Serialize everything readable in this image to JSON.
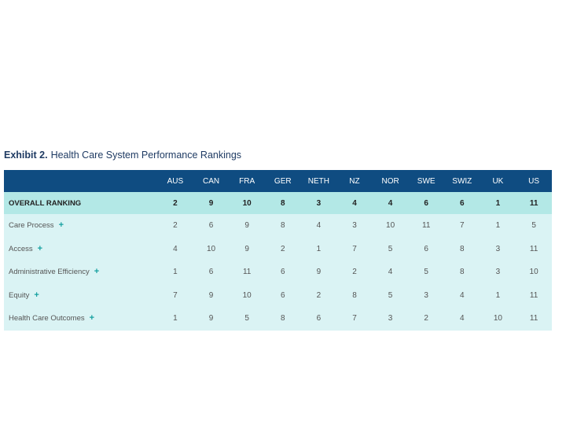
{
  "exhibit": {
    "number_label": "Exhibit 2.",
    "title": "Health Care System Performance Rankings"
  },
  "chart_data": {
    "type": "table",
    "columns": [
      "AUS",
      "CAN",
      "FRA",
      "GER",
      "NETH",
      "NZ",
      "NOR",
      "SWE",
      "SWIZ",
      "UK",
      "US"
    ],
    "rows": [
      {
        "label": "OVERALL RANKING",
        "expandable": false,
        "values": [
          2,
          9,
          10,
          8,
          3,
          4,
          4,
          6,
          6,
          1,
          11
        ]
      },
      {
        "label": "Care Process",
        "expandable": true,
        "values": [
          2,
          6,
          9,
          8,
          4,
          3,
          10,
          11,
          7,
          1,
          5
        ]
      },
      {
        "label": "Access",
        "expandable": true,
        "values": [
          4,
          10,
          9,
          2,
          1,
          7,
          5,
          6,
          8,
          3,
          11
        ]
      },
      {
        "label": "Administrative Efficiency",
        "expandable": true,
        "values": [
          1,
          6,
          11,
          6,
          9,
          2,
          4,
          5,
          8,
          3,
          10
        ]
      },
      {
        "label": "Equity",
        "expandable": true,
        "values": [
          7,
          9,
          10,
          6,
          2,
          8,
          5,
          3,
          4,
          1,
          11
        ]
      },
      {
        "label": "Health Care Outcomes",
        "expandable": true,
        "values": [
          1,
          9,
          5,
          8,
          6,
          7,
          3,
          2,
          4,
          10,
          11
        ]
      }
    ]
  },
  "icons": {
    "expand": "+"
  },
  "colors": {
    "header_bg": "#0f4c81",
    "overall_bg": "#b3e8e6",
    "row_bg": "#daf3f4",
    "accent": "#16a0a0"
  }
}
